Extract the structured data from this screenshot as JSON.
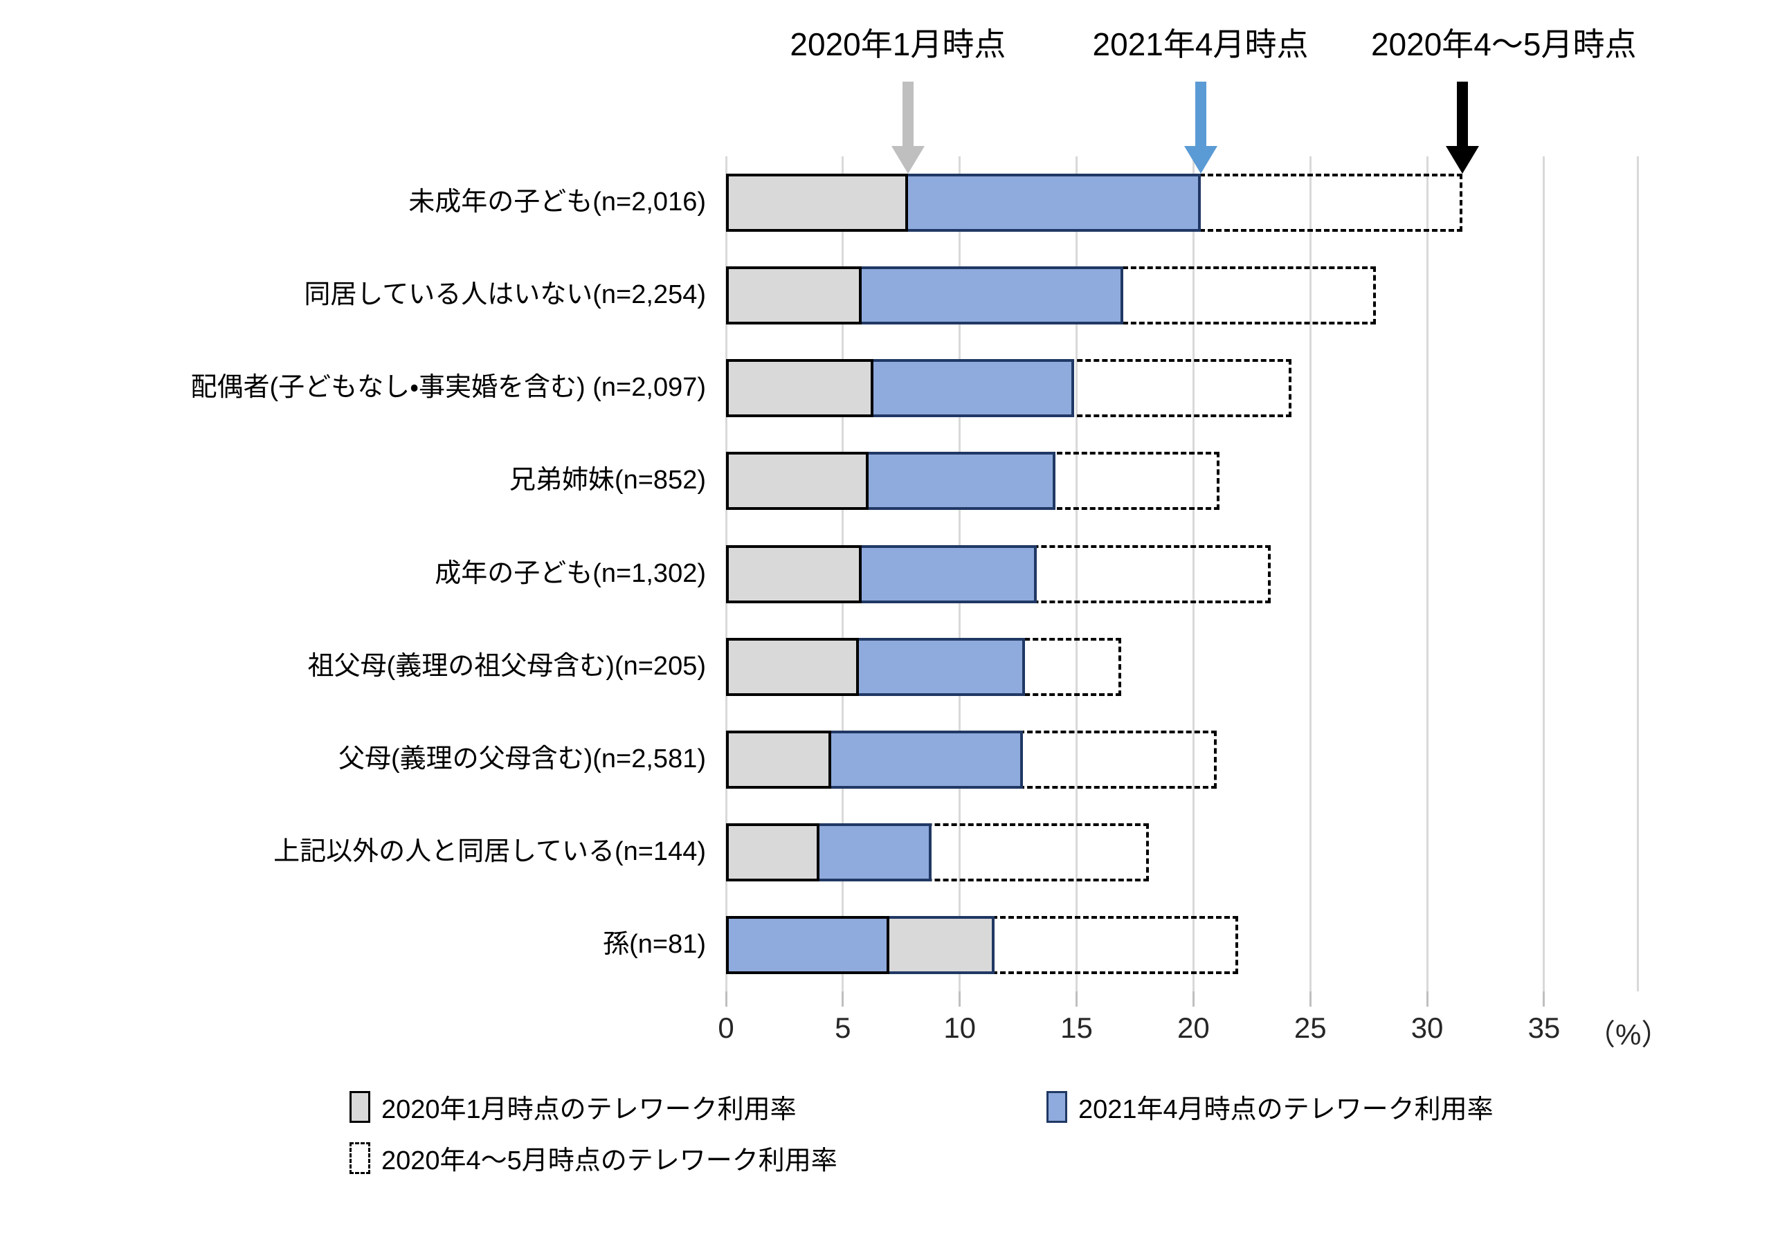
{
  "chart_data": {
    "type": "bar",
    "orientation": "horizontal",
    "unit_label": "（%）",
    "x_ticks": [
      0,
      5,
      10,
      15,
      20,
      25,
      30,
      35
    ],
    "x_axis_range": [
      0,
      39
    ],
    "grid": true,
    "legend_position": "bottom",
    "categories": [
      "未成年の子ども(n=2,016)",
      "同居している人はいない(n=2,254)",
      "配偶者(子どもなし・事実婚を含む) (n=2,097)",
      "兄弟姉妹(n=852)",
      "成年の子ども(n=1,302)",
      "祖父母(義理の祖父母含む)(n=205)",
      "父母(義理の父母含む)(n=2,581)",
      "上記以外の人と同居している(n=144)",
      "孫(n=81)"
    ],
    "series": [
      {
        "name": "2020年1月時点のテレワーク利用率",
        "style": "gray-solid",
        "fill": "#D9D9D9",
        "values": [
          7.8,
          5.8,
          6.3,
          6.1,
          5.8,
          5.7,
          4.5,
          4.0,
          11.5
        ]
      },
      {
        "name": "2021年4月時点のテレワーク利用率",
        "style": "blue-solid",
        "fill": "#8FAADC",
        "values": [
          20.3,
          17.0,
          14.9,
          14.1,
          13.3,
          12.8,
          12.7,
          8.8,
          7.0
        ]
      },
      {
        "name": "2020年4〜5月時点のテレワーク利用率",
        "style": "dashed-outline",
        "fill": "none",
        "values": [
          31.5,
          27.8,
          24.2,
          21.1,
          23.3,
          16.9,
          21.0,
          18.1,
          21.9
        ]
      }
    ],
    "annotations": [
      {
        "label": "2020年1月時点",
        "series_index": 0,
        "arrow_color": "#BFBFBF"
      },
      {
        "label": "2021年4月時点",
        "series_index": 1,
        "arrow_color": "#5B9BD5"
      },
      {
        "label": "2020年4〜5月時点",
        "series_index": 2,
        "arrow_color": "#000000"
      }
    ],
    "colors": {
      "gray_fill": "#D9D9D9",
      "blue_fill": "#8FAADC",
      "front_bar_border": "#000000",
      "back_bar_border": "#203864",
      "dashed_border": "#000000",
      "gridline": "#D9D9D9"
    }
  }
}
